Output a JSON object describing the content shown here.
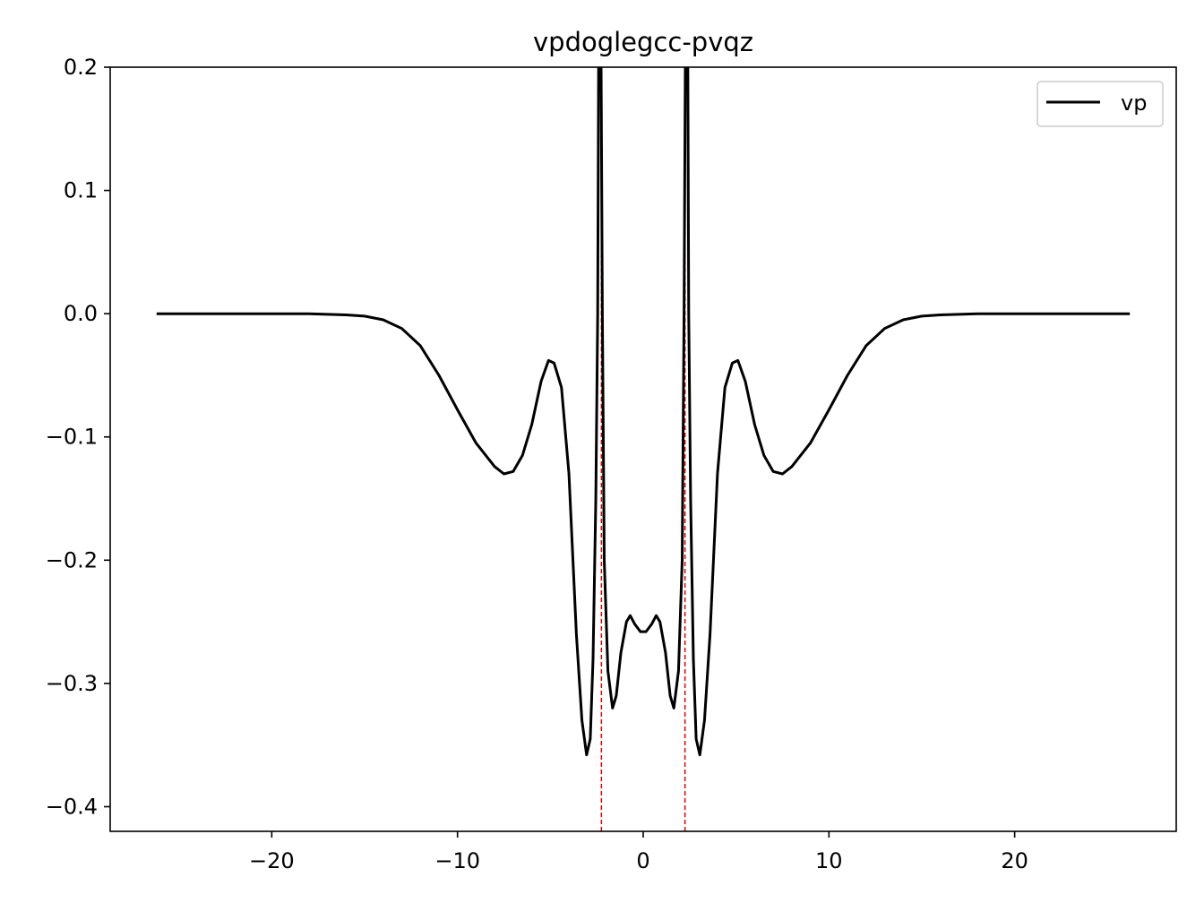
{
  "chart_data": {
    "type": "line",
    "title": "vpdoglegcc-pvqz",
    "xlabel": "",
    "ylabel": "",
    "xlim": [
      -28.7,
      28.7
    ],
    "ylim": [
      -0.42,
      0.2
    ],
    "x_ticks": [
      -20,
      -10,
      0,
      10,
      20
    ],
    "x_tick_labels": [
      "−20",
      "−10",
      "0",
      "10",
      "20"
    ],
    "y_ticks": [
      0.2,
      0.1,
      0.0,
      -0.1,
      -0.2,
      -0.3,
      -0.4
    ],
    "y_tick_labels": [
      "0.2",
      "0.1",
      "0.0",
      "−0.1",
      "−0.2",
      "−0.3",
      "−0.4"
    ],
    "grid": false,
    "legend": {
      "placement": "top-right",
      "entries": [
        "vp"
      ]
    },
    "series": [
      {
        "name": "vp",
        "color": "#000000",
        "points": [
          [
            -26.2,
            0.0
          ],
          [
            -22.0,
            0.0
          ],
          [
            -18.0,
            0.0
          ],
          [
            -16.0,
            -0.001
          ],
          [
            -15.0,
            -0.002
          ],
          [
            -14.0,
            -0.005
          ],
          [
            -13.0,
            -0.012
          ],
          [
            -12.0,
            -0.026
          ],
          [
            -11.0,
            -0.05
          ],
          [
            -10.0,
            -0.078
          ],
          [
            -9.0,
            -0.105
          ],
          [
            -8.0,
            -0.124
          ],
          [
            -7.5,
            -0.13
          ],
          [
            -7.0,
            -0.128
          ],
          [
            -6.5,
            -0.115
          ],
          [
            -6.0,
            -0.09
          ],
          [
            -5.5,
            -0.055
          ],
          [
            -5.1,
            -0.038
          ],
          [
            -4.8,
            -0.04
          ],
          [
            -4.4,
            -0.06
          ],
          [
            -4.0,
            -0.13
          ],
          [
            -3.6,
            -0.26
          ],
          [
            -3.3,
            -0.33
          ],
          [
            -3.05,
            -0.358
          ],
          [
            -2.85,
            -0.345
          ],
          [
            -2.7,
            -0.28
          ],
          [
            -2.55,
            -0.15
          ],
          [
            -2.45,
            0.0
          ],
          [
            -2.38,
            0.3
          ],
          [
            -2.3,
            0.3
          ],
          [
            -2.2,
            0.0
          ],
          [
            -2.1,
            -0.2
          ],
          [
            -1.9,
            -0.29
          ],
          [
            -1.65,
            -0.32
          ],
          [
            -1.45,
            -0.31
          ],
          [
            -1.2,
            -0.275
          ],
          [
            -0.9,
            -0.25
          ],
          [
            -0.7,
            -0.245
          ],
          [
            -0.45,
            -0.252
          ],
          [
            -0.15,
            -0.258
          ],
          [
            0.0,
            -0.258
          ],
          [
            0.15,
            -0.258
          ],
          [
            0.45,
            -0.252
          ],
          [
            0.7,
            -0.245
          ],
          [
            0.9,
            -0.25
          ],
          [
            1.2,
            -0.275
          ],
          [
            1.45,
            -0.31
          ],
          [
            1.65,
            -0.32
          ],
          [
            1.9,
            -0.29
          ],
          [
            2.1,
            -0.2
          ],
          [
            2.2,
            0.0
          ],
          [
            2.3,
            0.3
          ],
          [
            2.38,
            0.3
          ],
          [
            2.45,
            0.0
          ],
          [
            2.55,
            -0.15
          ],
          [
            2.7,
            -0.28
          ],
          [
            2.85,
            -0.345
          ],
          [
            3.05,
            -0.358
          ],
          [
            3.3,
            -0.33
          ],
          [
            3.6,
            -0.26
          ],
          [
            4.0,
            -0.13
          ],
          [
            4.4,
            -0.06
          ],
          [
            4.8,
            -0.04
          ],
          [
            5.1,
            -0.038
          ],
          [
            5.5,
            -0.055
          ],
          [
            6.0,
            -0.09
          ],
          [
            6.5,
            -0.115
          ],
          [
            7.0,
            -0.128
          ],
          [
            7.5,
            -0.13
          ],
          [
            8.0,
            -0.124
          ],
          [
            9.0,
            -0.105
          ],
          [
            10.0,
            -0.078
          ],
          [
            11.0,
            -0.05
          ],
          [
            12.0,
            -0.026
          ],
          [
            13.0,
            -0.012
          ],
          [
            14.0,
            -0.005
          ],
          [
            15.0,
            -0.002
          ],
          [
            16.0,
            -0.001
          ],
          [
            18.0,
            0.0
          ],
          [
            22.0,
            0.0
          ],
          [
            26.2,
            0.0
          ]
        ]
      }
    ],
    "vlines": [
      {
        "x": -2.25,
        "color": "#dd0000",
        "style": "dashed"
      },
      {
        "x": 2.25,
        "color": "#dd0000",
        "style": "dashed"
      }
    ]
  }
}
